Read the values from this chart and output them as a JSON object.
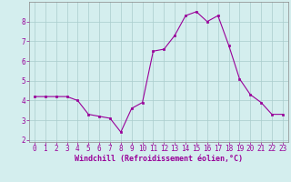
{
  "x": [
    0,
    1,
    2,
    3,
    4,
    5,
    6,
    7,
    8,
    9,
    10,
    11,
    12,
    13,
    14,
    15,
    16,
    17,
    18,
    19,
    20,
    21,
    22,
    23
  ],
  "y": [
    4.2,
    4.2,
    4.2,
    4.2,
    4.0,
    3.3,
    3.2,
    3.1,
    2.4,
    3.6,
    3.9,
    6.5,
    6.6,
    7.3,
    8.3,
    8.5,
    8.0,
    8.3,
    6.8,
    5.1,
    4.3,
    3.9,
    3.3,
    3.3
  ],
  "line_color": "#990099",
  "marker": "s",
  "marker_size": 2.0,
  "bg_color": "#d4eeee",
  "grid_color": "#aacccc",
  "xlabel": "Windchill (Refroidissement éolien,°C)",
  "xlabel_color": "#990099",
  "tick_color": "#990099",
  "label_color": "#990099",
  "ylim": [
    1.9,
    9.0
  ],
  "xlim": [
    -0.5,
    23.5
  ],
  "yticks": [
    2,
    3,
    4,
    5,
    6,
    7,
    8
  ],
  "xticks": [
    0,
    1,
    2,
    3,
    4,
    5,
    6,
    7,
    8,
    9,
    10,
    11,
    12,
    13,
    14,
    15,
    16,
    17,
    18,
    19,
    20,
    21,
    22,
    23
  ],
  "tick_fontsize": 5.5,
  "xlabel_fontsize": 6.0
}
